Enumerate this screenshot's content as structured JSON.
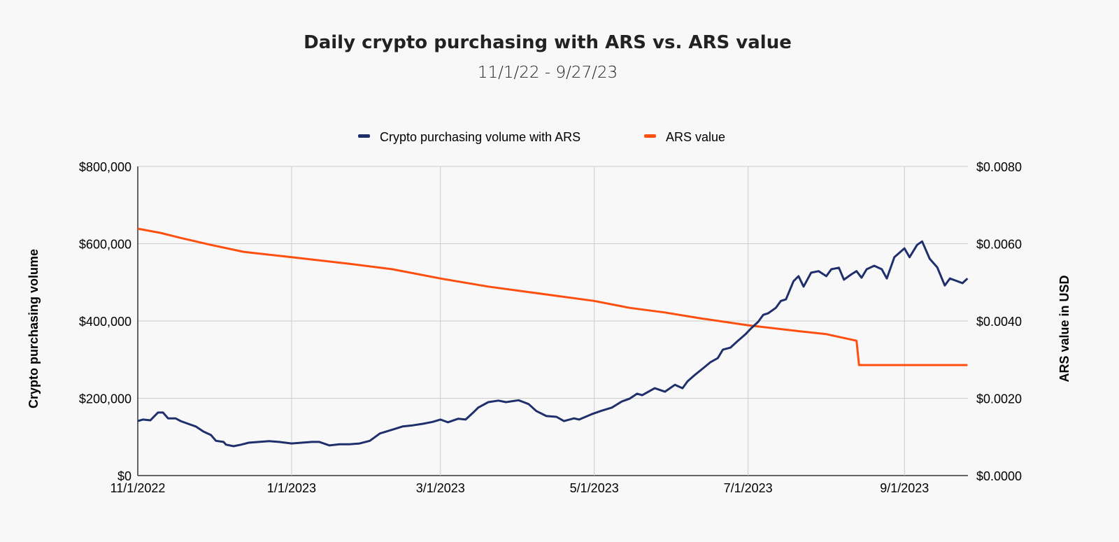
{
  "chart_data": {
    "type": "line",
    "title": "Daily crypto purchasing with ARS vs. ARS value",
    "subtitle": "11/1/22 - 9/27/23",
    "x_unit": "days since 11/1/2022",
    "xlim": [
      0,
      330
    ],
    "x_ticks": [
      {
        "label": "11/1/2022",
        "day": 0
      },
      {
        "label": "1/1/2023",
        "day": 61
      },
      {
        "label": "3/1/2023",
        "day": 120
      },
      {
        "label": "5/1/2023",
        "day": 181
      },
      {
        "label": "7/1/2023",
        "day": 242
      },
      {
        "label": "9/1/2023",
        "day": 304
      }
    ],
    "ylabel": "Crypto purchasing volume",
    "ylim": [
      0,
      800000
    ],
    "y_ticks": [
      "$0",
      "$200,000",
      "$400,000",
      "$600,000",
      "$800,000"
    ],
    "y2label": "ARS value in USD",
    "y2lim": [
      0,
      0.008
    ],
    "y2_ticks": [
      "$0.0000",
      "$0.0020",
      "$0.0040",
      "$0.0060",
      "$0.0080"
    ],
    "grid": true,
    "legend_position": "top",
    "series": [
      {
        "name": "Crypto purchasing volume with ARS",
        "axis": "left",
        "color": "#1f2f6b",
        "x": [
          0,
          2,
          5,
          8,
          10,
          12,
          15,
          17,
          20,
          23,
          26,
          29,
          31,
          34,
          35,
          38,
          41,
          44,
          48,
          52,
          56,
          61,
          65,
          69,
          72,
          76,
          80,
          84,
          88,
          92,
          96,
          101,
          105,
          109,
          113,
          117,
          120,
          123,
          127,
          130,
          133,
          135,
          139,
          143,
          146,
          151,
          153,
          155,
          158,
          162,
          166,
          169,
          173,
          175,
          180,
          184,
          188,
          192,
          195,
          198,
          200,
          205,
          209,
          213,
          216,
          218,
          221,
          224,
          227,
          230,
          232,
          235,
          238,
          241,
          243,
          246,
          248,
          250,
          253,
          255,
          257,
          260,
          262,
          264,
          267,
          270,
          273,
          275,
          278,
          280,
          283,
          285,
          287,
          289,
          292,
          295,
          297,
          300,
          304,
          306,
          309,
          311,
          314,
          317,
          320,
          322,
          325,
          327,
          329
        ],
        "values": [
          141000,
          145000,
          143000,
          163000,
          163000,
          148000,
          148000,
          141000,
          134000,
          127000,
          114000,
          105000,
          90000,
          87000,
          80000,
          76000,
          80000,
          85000,
          87000,
          89000,
          87000,
          83000,
          85000,
          87000,
          87000,
          78000,
          81000,
          81000,
          83000,
          90000,
          109000,
          119000,
          127000,
          130000,
          134000,
          139000,
          145000,
          138000,
          147000,
          145000,
          163000,
          176000,
          190000,
          194000,
          190000,
          195000,
          190000,
          185000,
          167000,
          154000,
          152000,
          141000,
          148000,
          145000,
          159000,
          168000,
          176000,
          192000,
          199000,
          212000,
          208000,
          226000,
          217000,
          235000,
          226000,
          244000,
          261000,
          277000,
          293000,
          304000,
          326000,
          331000,
          349000,
          366000,
          380000,
          398000,
          416000,
          420000,
          434000,
          452000,
          456000,
          503000,
          516000,
          489000,
          525000,
          529000,
          516000,
          534000,
          538000,
          507000,
          521000,
          529000,
          512000,
          534000,
          543000,
          534000,
          510000,
          565000,
          588000,
          565000,
          597000,
          606000,
          561000,
          539000,
          492000,
          510000,
          503000,
          498000,
          510000
        ]
      },
      {
        "name": "ARS value",
        "axis": "right",
        "color": "#ff4f0f",
        "x": [
          0,
          9,
          17,
          29,
          42,
          61,
          84,
          101,
          120,
          139,
          156,
          181,
          195,
          209,
          223,
          242,
          259,
          273,
          285,
          286,
          329
        ],
        "values": [
          0.00639,
          0.00628,
          0.00615,
          0.00597,
          0.00579,
          0.00565,
          0.00548,
          0.00534,
          0.0051,
          0.00489,
          0.00474,
          0.00452,
          0.00434,
          0.00422,
          0.00407,
          0.00389,
          0.00376,
          0.00366,
          0.00349,
          0.00286,
          0.00286
        ]
      }
    ]
  }
}
